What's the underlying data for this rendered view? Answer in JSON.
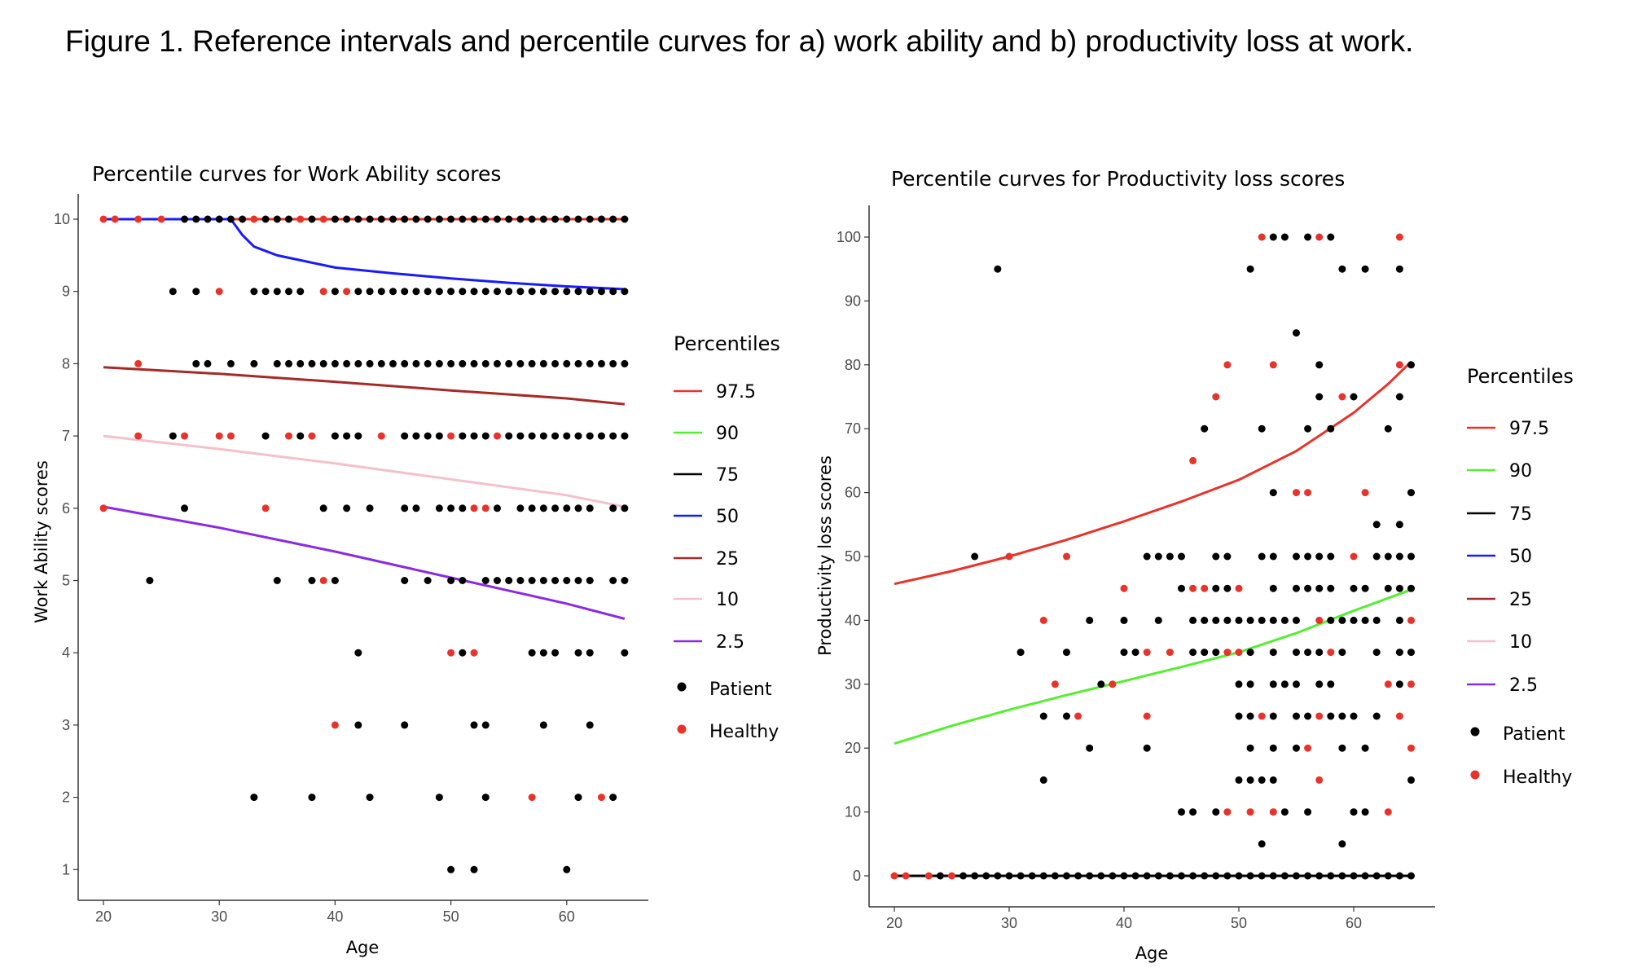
{
  "figure_title": "Figure 1. Reference intervals and percentile curves for a) work ability and b) productivity loss at work.",
  "legend": {
    "title": "Percentiles",
    "lines": [
      {
        "label": "97.5",
        "color": "#e8332a"
      },
      {
        "label": "90",
        "color": "#55ee33"
      },
      {
        "label": "75",
        "color": "#000000"
      },
      {
        "label": "50",
        "color": "#1a1aff"
      },
      {
        "label": "25",
        "color": "#a52a2a"
      },
      {
        "label": "10",
        "color": "#f4c0cb"
      },
      {
        "label": "2.5",
        "color": "#8a2be2"
      }
    ],
    "points": [
      {
        "label": "Patient",
        "color": "#000000"
      },
      {
        "label": "Healthy",
        "color": "#e8332a"
      }
    ]
  },
  "chart_data": [
    {
      "type": "scatter",
      "title": "Percentile curves for Work Ability scores",
      "xlabel": "Age",
      "ylabel": "Work Ability scores",
      "xlim": [
        18,
        67
      ],
      "ylim": [
        0.5,
        10.35
      ],
      "xticks": [
        20,
        30,
        40,
        50,
        60
      ],
      "yticks": [
        1,
        2,
        3,
        4,
        5,
        6,
        7,
        8,
        9,
        10
      ],
      "grid": false,
      "legend_position": "right",
      "curves": [
        {
          "name": "97.5",
          "x": [
            20,
            65
          ],
          "y": [
            10,
            10
          ]
        },
        {
          "name": "50",
          "x": [
            20,
            31,
            32,
            33,
            35,
            40,
            45,
            50,
            55,
            60,
            65
          ],
          "y": [
            10,
            10,
            9.78,
            9.62,
            9.5,
            9.33,
            9.25,
            9.18,
            9.12,
            9.07,
            9.03
          ]
        },
        {
          "name": "25",
          "x": [
            20,
            30,
            40,
            50,
            60,
            65
          ],
          "y": [
            7.95,
            7.86,
            7.75,
            7.63,
            7.52,
            7.44
          ]
        },
        {
          "name": "10",
          "x": [
            20,
            30,
            40,
            50,
            60,
            65
          ],
          "y": [
            7.0,
            6.82,
            6.62,
            6.4,
            6.18,
            6.02
          ]
        },
        {
          "name": "2.5",
          "x": [
            20,
            30,
            40,
            50,
            60,
            65
          ],
          "y": [
            6.02,
            5.73,
            5.4,
            5.04,
            4.68,
            4.47
          ]
        }
      ],
      "rows": [
        {
          "y": 10,
          "patient": [
            27,
            28,
            29,
            30,
            31,
            32,
            34,
            35,
            36,
            38,
            40,
            41,
            42,
            43,
            44,
            45,
            46,
            47,
            48,
            49,
            50,
            51,
            52,
            53,
            54,
            55,
            56,
            57,
            58,
            59,
            60,
            61,
            62,
            63,
            64,
            65
          ],
          "healthy": [
            20,
            21,
            23,
            25,
            33,
            37,
            39
          ]
        },
        {
          "y": 9,
          "patient": [
            26,
            28,
            33,
            34,
            35,
            36,
            37,
            40,
            42,
            43,
            44,
            45,
            46,
            47,
            48,
            49,
            50,
            51,
            52,
            53,
            54,
            55,
            56,
            57,
            58,
            59,
            60,
            61,
            62,
            63,
            64,
            65
          ],
          "healthy": [
            30,
            39,
            41
          ]
        },
        {
          "y": 8,
          "patient": [
            28,
            29,
            31,
            33,
            35,
            36,
            37,
            38,
            39,
            40,
            41,
            42,
            43,
            44,
            45,
            46,
            47,
            48,
            49,
            50,
            51,
            52,
            53,
            54,
            55,
            56,
            57,
            58,
            59,
            60,
            61,
            62,
            63,
            64,
            65
          ],
          "healthy": [
            23
          ]
        },
        {
          "y": 7,
          "patient": [
            26,
            34,
            37,
            40,
            41,
            42,
            46,
            47,
            48,
            49,
            51,
            52,
            53,
            55,
            56,
            57,
            58,
            59,
            60,
            61,
            62,
            63,
            64,
            65
          ],
          "healthy": [
            23,
            27,
            30,
            31,
            36,
            38,
            44,
            50,
            54
          ]
        },
        {
          "y": 6,
          "patient": [
            27,
            39,
            41,
            43,
            46,
            47,
            49,
            50,
            51,
            54,
            56,
            57,
            58,
            59,
            60,
            61,
            62,
            64,
            65
          ],
          "healthy": [
            20,
            34,
            52,
            53
          ]
        },
        {
          "y": 5,
          "patient": [
            24,
            35,
            38,
            40,
            46,
            48,
            50,
            51,
            53,
            54,
            55,
            56,
            57,
            58,
            59,
            60,
            61,
            62,
            64,
            65
          ],
          "healthy": [
            39
          ]
        },
        {
          "y": 4,
          "patient": [
            42,
            51,
            57,
            58,
            59,
            61,
            62,
            65
          ],
          "healthy": [
            50,
            52
          ]
        },
        {
          "y": 3,
          "patient": [
            42,
            46,
            52,
            53,
            58,
            62
          ],
          "healthy": [
            40
          ]
        },
        {
          "y": 2,
          "patient": [
            33,
            38,
            43,
            49,
            53,
            61,
            64
          ],
          "healthy": [
            57,
            63
          ]
        },
        {
          "y": 1,
          "patient": [
            50,
            52,
            60
          ],
          "healthy": []
        }
      ]
    },
    {
      "type": "scatter",
      "title": "Percentile curves for Productivity loss scores",
      "xlabel": "Age",
      "ylabel": "Productivity loss scores",
      "xlim": [
        18,
        67
      ],
      "ylim": [
        -5,
        104
      ],
      "xticks": [
        20,
        30,
        40,
        50,
        60
      ],
      "yticks": [
        0,
        10,
        20,
        30,
        40,
        50,
        60,
        70,
        80,
        90,
        100
      ],
      "grid": false,
      "legend_position": "right",
      "curves": [
        {
          "name": "97.5",
          "x": [
            20,
            25,
            30,
            35,
            40,
            45,
            50,
            55,
            60,
            63,
            65
          ],
          "y": [
            45.7,
            47.7,
            50,
            52.6,
            55.5,
            58.6,
            62,
            66.5,
            72.5,
            77,
            80.5
          ]
        },
        {
          "name": "90",
          "x": [
            20,
            25,
            30,
            35,
            40,
            45,
            50,
            55,
            60,
            65
          ],
          "y": [
            20.7,
            23.5,
            26,
            28.3,
            30.5,
            32.7,
            35,
            38,
            41.5,
            44.8
          ]
        },
        {
          "name": "75",
          "x": [
            20,
            65
          ],
          "y": [
            0,
            0
          ]
        }
      ],
      "rows": [
        {
          "y": 100,
          "patient": [
            53,
            54,
            56,
            58
          ],
          "healthy": [
            52,
            57,
            64
          ]
        },
        {
          "y": 95,
          "patient": [
            29,
            51,
            59,
            61,
            64
          ],
          "healthy": []
        },
        {
          "y": 85,
          "patient": [
            55
          ],
          "healthy": []
        },
        {
          "y": 80,
          "patient": [
            57,
            65
          ],
          "healthy": [
            49,
            53,
            64
          ]
        },
        {
          "y": 75,
          "patient": [
            57,
            60,
            64
          ],
          "healthy": [
            48,
            59
          ]
        },
        {
          "y": 70,
          "patient": [
            47,
            52,
            56,
            58,
            63
          ],
          "healthy": []
        },
        {
          "y": 65,
          "patient": [],
          "healthy": [
            46
          ]
        },
        {
          "y": 60,
          "patient": [
            53,
            65
          ],
          "healthy": [
            55,
            56,
            61
          ]
        },
        {
          "y": 55,
          "patient": [
            62,
            64
          ],
          "healthy": []
        },
        {
          "y": 50,
          "patient": [
            27,
            42,
            43,
            44,
            45,
            48,
            49,
            52,
            53,
            55,
            56,
            57,
            58,
            62,
            63,
            64,
            65
          ],
          "healthy": [
            30,
            35,
            60
          ]
        },
        {
          "y": 45,
          "patient": [
            45,
            48,
            49,
            53,
            55,
            56,
            57,
            58,
            60,
            61,
            63,
            64,
            65
          ],
          "healthy": [
            40,
            46,
            47,
            50
          ]
        },
        {
          "y": 40,
          "patient": [
            37,
            40,
            43,
            46,
            47,
            48,
            49,
            50,
            51,
            52,
            53,
            54,
            55,
            58,
            59,
            60,
            61,
            62,
            64
          ],
          "healthy": [
            33,
            57,
            65
          ]
        },
        {
          "y": 35,
          "patient": [
            31,
            35,
            40,
            41,
            46,
            47,
            48,
            51,
            53,
            55,
            56,
            57,
            59,
            62,
            64,
            65
          ],
          "healthy": [
            42,
            44,
            49,
            50,
            58
          ]
        },
        {
          "y": 30,
          "patient": [
            38,
            50,
            51,
            53,
            54,
            55,
            57,
            58,
            64
          ],
          "healthy": [
            34,
            39,
            63,
            65
          ]
        },
        {
          "y": 25,
          "patient": [
            33,
            35,
            50,
            51,
            53,
            55,
            56,
            58,
            59,
            60,
            62
          ],
          "healthy": [
            36,
            42,
            52,
            57,
            64
          ]
        },
        {
          "y": 20,
          "patient": [
            37,
            42,
            51,
            53,
            55,
            59,
            61
          ],
          "healthy": [
            56,
            65
          ]
        },
        {
          "y": 15,
          "patient": [
            33,
            50,
            51,
            52,
            53,
            65
          ],
          "healthy": [
            57
          ]
        },
        {
          "y": 10,
          "patient": [
            45,
            46,
            48,
            54,
            56,
            60,
            61
          ],
          "healthy": [
            49,
            51,
            53,
            63
          ]
        },
        {
          "y": 5,
          "patient": [
            52,
            59
          ],
          "healthy": []
        },
        {
          "y": 0,
          "patient": [
            24,
            26,
            27,
            28,
            29,
            30,
            31,
            32,
            33,
            34,
            35,
            36,
            37,
            38,
            39,
            40,
            41,
            42,
            43,
            44,
            45,
            46,
            47,
            48,
            49,
            50,
            51,
            52,
            53,
            54,
            55,
            56,
            57,
            58,
            59,
            60,
            61,
            62,
            63,
            64,
            65
          ],
          "healthy": [
            20,
            21,
            23,
            25
          ]
        }
      ]
    }
  ]
}
